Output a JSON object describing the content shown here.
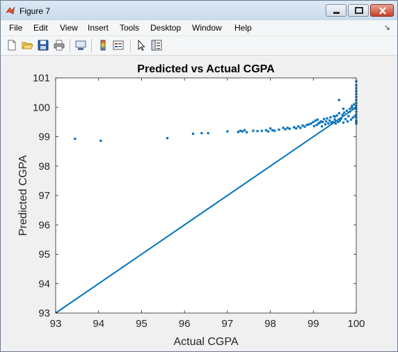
{
  "window": {
    "title": "Figure 7",
    "controls": [
      "minimize",
      "maximize",
      "close"
    ]
  },
  "menu": {
    "items": [
      "File",
      "Edit",
      "View",
      "Insert",
      "Tools",
      "Desktop",
      "Window",
      "Help"
    ],
    "dock_glyph": "↘"
  },
  "toolbar": {
    "icons": [
      "new-figure-icon",
      "open-file-icon",
      "save-icon",
      "print-icon",
      "link-plot-icon",
      "colorbar-icon",
      "legend-icon",
      "edit-plot-arrow-icon",
      "property-editor-icon"
    ]
  },
  "colors": {
    "marker": "#0072bd",
    "axes_bg": "#ffffff",
    "figure_bg": "#f0f0f0",
    "close_button": "#c7412a"
  },
  "chart_data": {
    "type": "scatter",
    "title": "Predicted vs Actual CGPA",
    "xlabel": "Actual CGPA",
    "ylabel": "Predicted CGPA",
    "xlim": [
      93,
      100
    ],
    "ylim": [
      93,
      101
    ],
    "xticks": [
      "93",
      "94",
      "95",
      "96",
      "97",
      "98",
      "99",
      "100"
    ],
    "yticks": [
      "93",
      "94",
      "95",
      "96",
      "97",
      "98",
      "99",
      "100",
      "101"
    ],
    "grid": false,
    "legend": "none",
    "marker": "square",
    "series": [
      {
        "kind": "y=x line",
        "x": [
          93.0,
          100.0
        ],
        "y": [
          93.0,
          100.0
        ]
      },
      {
        "kind": "scatter points",
        "x": [
          93.45,
          94.05,
          95.6,
          96.2,
          96.4,
          96.55,
          97.0,
          97.25,
          97.3,
          97.35,
          97.4,
          97.45,
          97.6,
          97.7,
          97.8,
          97.9,
          97.95,
          98.0,
          98.05,
          98.1,
          98.2,
          98.3,
          98.35,
          98.4,
          98.45,
          98.55,
          98.6,
          98.65,
          98.7,
          98.75,
          98.8,
          98.85,
          98.9,
          98.95,
          99.0,
          99.02,
          99.05,
          99.08,
          99.1,
          99.12,
          99.15,
          99.18,
          99.2,
          99.22,
          99.25,
          99.28,
          99.3,
          99.32,
          99.35,
          99.38,
          99.4,
          99.42,
          99.45,
          99.48,
          99.5,
          99.52,
          99.55,
          99.58,
          99.6,
          99.62,
          99.65,
          99.68,
          99.7,
          99.72,
          99.75,
          99.78,
          99.8,
          99.82,
          99.85,
          99.88,
          99.9,
          99.92,
          99.95,
          99.97,
          100.0,
          100.0,
          100.0,
          100.0,
          100.0,
          100.0,
          100.0,
          100.0,
          100.0,
          100.0,
          100.0,
          100.0,
          100.0,
          100.0,
          100.0,
          100.0,
          99.85,
          99.9,
          99.6,
          99.7,
          99.5
        ],
        "y": [
          98.93,
          98.86,
          98.95,
          99.1,
          99.12,
          99.12,
          99.18,
          99.16,
          99.2,
          99.18,
          99.22,
          99.15,
          99.2,
          99.19,
          99.2,
          99.22,
          99.18,
          99.28,
          99.22,
          99.2,
          99.24,
          99.3,
          99.25,
          99.3,
          99.27,
          99.32,
          99.28,
          99.35,
          99.3,
          99.38,
          99.34,
          99.4,
          99.42,
          99.45,
          99.5,
          99.36,
          99.55,
          99.4,
          99.58,
          99.45,
          99.48,
          99.52,
          99.35,
          99.5,
          99.6,
          99.42,
          99.52,
          99.62,
          99.45,
          99.55,
          99.66,
          99.48,
          99.5,
          99.7,
          99.58,
          99.45,
          99.72,
          99.5,
          99.8,
          99.55,
          99.62,
          99.75,
          99.48,
          99.82,
          99.6,
          99.88,
          99.52,
          99.7,
          99.95,
          99.58,
          100.05,
          99.65,
          100.1,
          99.7,
          99.45,
          99.55,
          99.65,
          99.75,
          99.85,
          99.95,
          100.05,
          100.15,
          100.25,
          100.35,
          100.45,
          100.55,
          100.65,
          100.75,
          100.88,
          99.5,
          99.85,
          99.98,
          100.25,
          99.95,
          99.68
        ]
      }
    ]
  }
}
